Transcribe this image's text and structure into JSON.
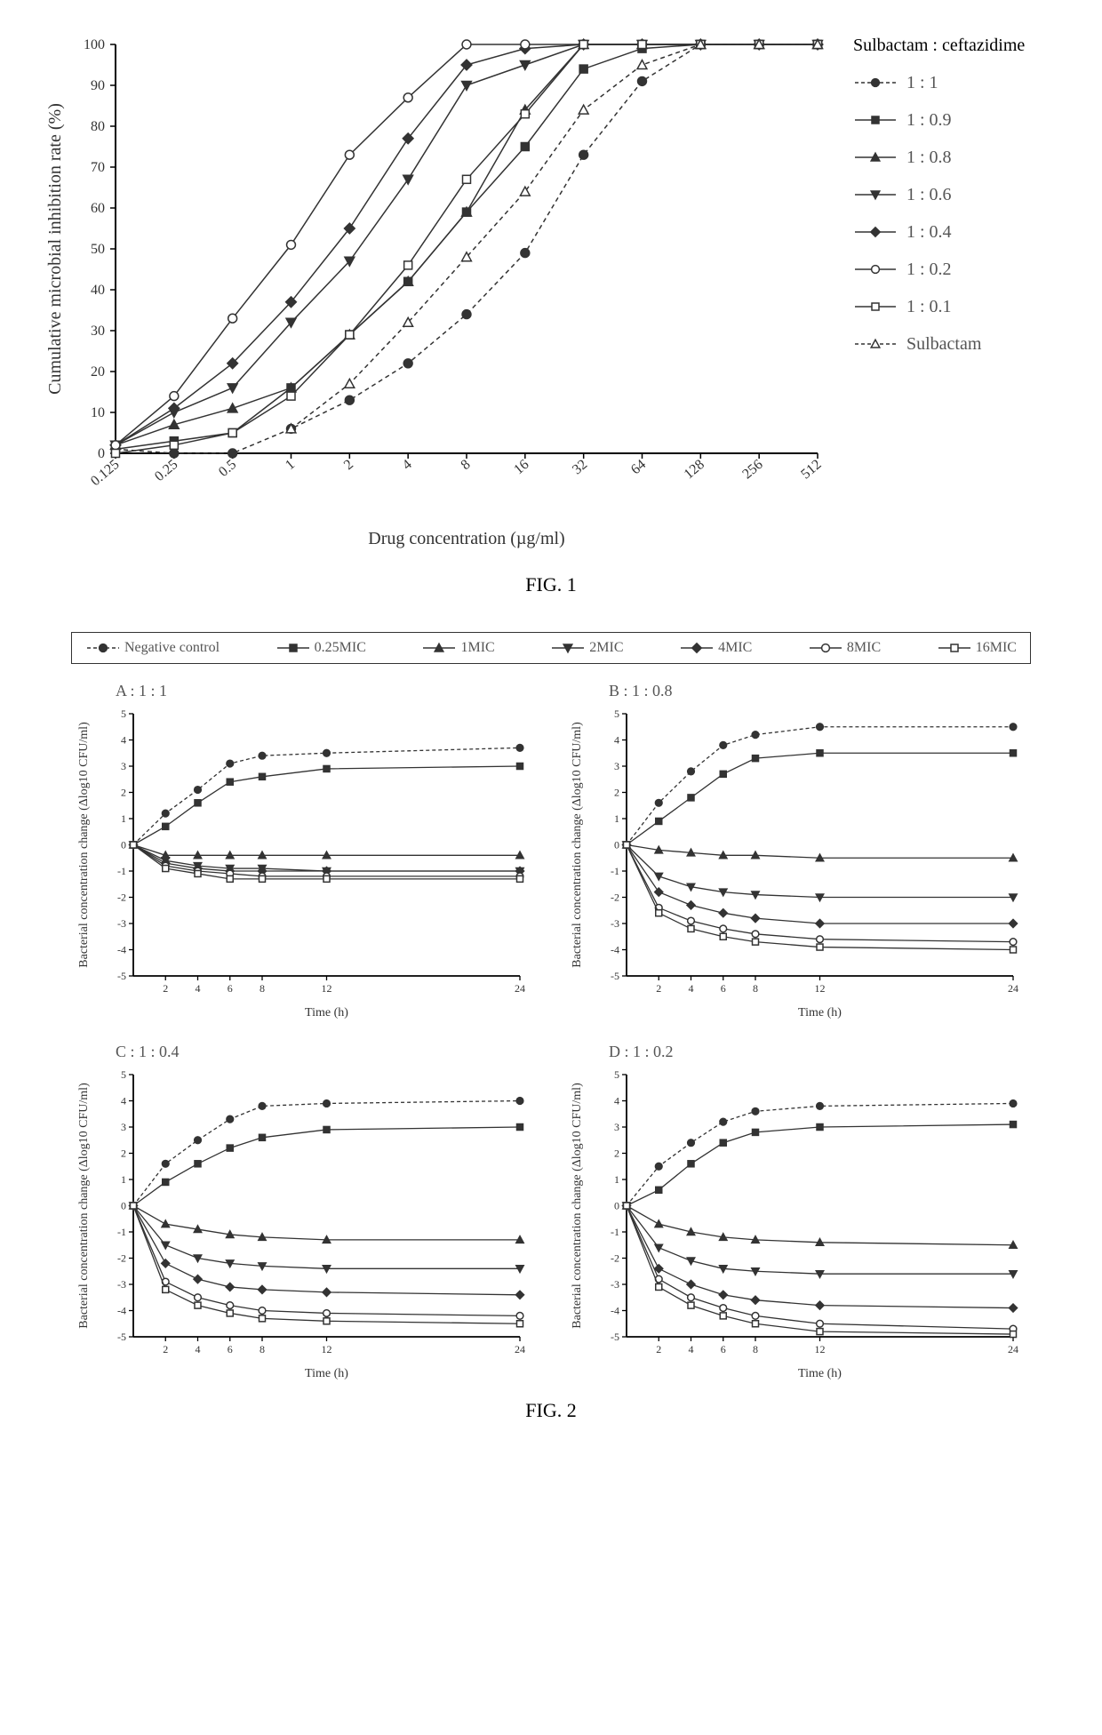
{
  "colors": {
    "ink": "#333333",
    "light": "#888888",
    "bg": "#ffffff",
    "axis": "#000000"
  },
  "markers": {
    "circle_filled": {
      "shape": "circle",
      "filled": true
    },
    "square_filled": {
      "shape": "square",
      "filled": true
    },
    "tri_up_filled": {
      "shape": "triangle-up",
      "filled": true
    },
    "tri_down_filled": {
      "shape": "triangle-down",
      "filled": true
    },
    "diamond_filled": {
      "shape": "diamond",
      "filled": true
    },
    "circle_open": {
      "shape": "circle",
      "filled": false
    },
    "square_open": {
      "shape": "square",
      "filled": false
    },
    "tri_up_open": {
      "shape": "triangle-up",
      "filled": false
    }
  },
  "fig1": {
    "caption": "FIG. 1",
    "xlabel": "Drug concentration (µg/ml)",
    "ylabel": "Cumulative microbial inhibition rate (%)",
    "x_categories": [
      "0.125",
      "0.25",
      "0.5",
      "1",
      "2",
      "4",
      "8",
      "16",
      "32",
      "64",
      "128",
      "256",
      "512"
    ],
    "y_ticks": [
      0,
      10,
      20,
      30,
      40,
      50,
      60,
      70,
      80,
      90,
      100
    ],
    "ylim": [
      0,
      100
    ],
    "legend_title": "Sulbactam : ceftazidime",
    "axis_fontsize": 20,
    "tick_fontsize": 16,
    "series": [
      {
        "label": "1 : 1",
        "marker": "circle_filled",
        "dashed": true,
        "y": [
          1,
          0,
          0,
          6,
          13,
          22,
          34,
          49,
          73,
          91,
          100,
          100,
          100
        ]
      },
      {
        "label": "1 : 0.9",
        "marker": "square_filled",
        "dashed": false,
        "y": [
          1,
          3,
          5,
          16,
          29,
          42,
          59,
          75,
          94,
          99,
          100,
          100,
          100
        ]
      },
      {
        "label": "1 : 0.8",
        "marker": "tri_up_filled",
        "dashed": false,
        "y": [
          2,
          7,
          11,
          16,
          29,
          42,
          59,
          84,
          100,
          100,
          100,
          100,
          100
        ]
      },
      {
        "label": "1 : 0.6",
        "marker": "tri_down_filled",
        "dashed": false,
        "y": [
          2,
          10,
          16,
          32,
          47,
          67,
          90,
          95,
          100,
          100,
          100,
          100,
          100
        ]
      },
      {
        "label": "1 : 0.4",
        "marker": "diamond_filled",
        "dashed": false,
        "y": [
          2,
          11,
          22,
          37,
          55,
          77,
          95,
          99,
          100,
          100,
          100,
          100,
          100
        ]
      },
      {
        "label": "1 : 0.2",
        "marker": "circle_open",
        "dashed": false,
        "y": [
          2,
          14,
          33,
          51,
          73,
          87,
          100,
          100,
          100,
          100,
          100,
          100,
          100
        ]
      },
      {
        "label": "1 : 0.1",
        "marker": "square_open",
        "dashed": false,
        "y": [
          0,
          2,
          5,
          14,
          29,
          46,
          67,
          83,
          100,
          100,
          100,
          100,
          100
        ]
      },
      {
        "label": "Sulbactam",
        "marker": "tri_up_open",
        "dashed": true,
        "y": [
          null,
          null,
          null,
          6,
          17,
          32,
          48,
          64,
          84,
          95,
          100,
          100,
          100
        ]
      }
    ]
  },
  "fig2": {
    "caption": "FIG. 2",
    "xlabel": "Time (h)",
    "ylabel": "Bacterial concentration change (Δlog10 CFU/ml)",
    "x_values": [
      0,
      2,
      4,
      6,
      8,
      12,
      24
    ],
    "x_ticks": [
      2,
      4,
      6,
      8,
      12,
      24
    ],
    "ylim": [
      -5,
      5
    ],
    "y_ticks": [
      -5,
      -4,
      -3,
      -2,
      -1,
      0,
      1,
      2,
      3,
      4,
      5
    ],
    "axis_fontsize": 14,
    "tick_fontsize": 12,
    "legend_items": [
      {
        "label": "Negative control",
        "marker": "circle_filled",
        "dashed": true
      },
      {
        "label": "0.25MIC",
        "marker": "square_filled",
        "dashed": false
      },
      {
        "label": "1MIC",
        "marker": "tri_up_filled",
        "dashed": false
      },
      {
        "label": "2MIC",
        "marker": "tri_down_filled",
        "dashed": false
      },
      {
        "label": "4MIC",
        "marker": "diamond_filled",
        "dashed": false
      },
      {
        "label": "8MIC",
        "marker": "circle_open",
        "dashed": false
      },
      {
        "label": "16MIC",
        "marker": "square_open",
        "dashed": false
      }
    ],
    "panels": [
      {
        "title": "A : 1 : 1",
        "series": [
          {
            "marker": "circle_filled",
            "dashed": true,
            "y": [
              0,
              1.2,
              2.1,
              3.1,
              3.4,
              3.5,
              3.7
            ]
          },
          {
            "marker": "square_filled",
            "dashed": false,
            "y": [
              0,
              0.7,
              1.6,
              2.4,
              2.6,
              2.9,
              3.0
            ]
          },
          {
            "marker": "tri_up_filled",
            "dashed": false,
            "y": [
              0,
              -0.4,
              -0.4,
              -0.4,
              -0.4,
              -0.4,
              -0.4
            ]
          },
          {
            "marker": "tri_down_filled",
            "dashed": false,
            "y": [
              0,
              -0.6,
              -0.8,
              -0.9,
              -0.9,
              -1.0,
              -1.0
            ]
          },
          {
            "marker": "diamond_filled",
            "dashed": false,
            "y": [
              0,
              -0.7,
              -0.9,
              -1.0,
              -1.0,
              -1.0,
              -1.0
            ]
          },
          {
            "marker": "circle_open",
            "dashed": false,
            "y": [
              0,
              -0.8,
              -1.0,
              -1.1,
              -1.2,
              -1.2,
              -1.2
            ]
          },
          {
            "marker": "square_open",
            "dashed": false,
            "y": [
              0,
              -0.9,
              -1.1,
              -1.3,
              -1.3,
              -1.3,
              -1.3
            ]
          }
        ]
      },
      {
        "title": "B : 1 : 0.8",
        "series": [
          {
            "marker": "circle_filled",
            "dashed": true,
            "y": [
              0,
              1.6,
              2.8,
              3.8,
              4.2,
              4.5,
              4.5
            ]
          },
          {
            "marker": "square_filled",
            "dashed": false,
            "y": [
              0,
              0.9,
              1.8,
              2.7,
              3.3,
              3.5,
              3.5
            ]
          },
          {
            "marker": "tri_up_filled",
            "dashed": false,
            "y": [
              0,
              -0.2,
              -0.3,
              -0.4,
              -0.4,
              -0.5,
              -0.5
            ]
          },
          {
            "marker": "tri_down_filled",
            "dashed": false,
            "y": [
              0,
              -1.2,
              -1.6,
              -1.8,
              -1.9,
              -2.0,
              -2.0
            ]
          },
          {
            "marker": "diamond_filled",
            "dashed": false,
            "y": [
              0,
              -1.8,
              -2.3,
              -2.6,
              -2.8,
              -3.0,
              -3.0
            ]
          },
          {
            "marker": "circle_open",
            "dashed": false,
            "y": [
              0,
              -2.4,
              -2.9,
              -3.2,
              -3.4,
              -3.6,
              -3.7
            ]
          },
          {
            "marker": "square_open",
            "dashed": false,
            "y": [
              0,
              -2.6,
              -3.2,
              -3.5,
              -3.7,
              -3.9,
              -4.0
            ]
          }
        ]
      },
      {
        "title": "C : 1 : 0.4",
        "series": [
          {
            "marker": "circle_filled",
            "dashed": true,
            "y": [
              0,
              1.6,
              2.5,
              3.3,
              3.8,
              3.9,
              4.0
            ]
          },
          {
            "marker": "square_filled",
            "dashed": false,
            "y": [
              0,
              0.9,
              1.6,
              2.2,
              2.6,
              2.9,
              3.0
            ]
          },
          {
            "marker": "tri_up_filled",
            "dashed": false,
            "y": [
              0,
              -0.7,
              -0.9,
              -1.1,
              -1.2,
              -1.3,
              -1.3
            ]
          },
          {
            "marker": "tri_down_filled",
            "dashed": false,
            "y": [
              0,
              -1.5,
              -2.0,
              -2.2,
              -2.3,
              -2.4,
              -2.4
            ]
          },
          {
            "marker": "diamond_filled",
            "dashed": false,
            "y": [
              0,
              -2.2,
              -2.8,
              -3.1,
              -3.2,
              -3.3,
              -3.4
            ]
          },
          {
            "marker": "circle_open",
            "dashed": false,
            "y": [
              0,
              -2.9,
              -3.5,
              -3.8,
              -4.0,
              -4.1,
              -4.2
            ]
          },
          {
            "marker": "square_open",
            "dashed": false,
            "y": [
              0,
              -3.2,
              -3.8,
              -4.1,
              -4.3,
              -4.4,
              -4.5
            ]
          }
        ]
      },
      {
        "title": "D : 1 : 0.2",
        "series": [
          {
            "marker": "circle_filled",
            "dashed": true,
            "y": [
              0,
              1.5,
              2.4,
              3.2,
              3.6,
              3.8,
              3.9
            ]
          },
          {
            "marker": "square_filled",
            "dashed": false,
            "y": [
              0,
              0.6,
              1.6,
              2.4,
              2.8,
              3.0,
              3.1
            ]
          },
          {
            "marker": "tri_up_filled",
            "dashed": false,
            "y": [
              0,
              -0.7,
              -1.0,
              -1.2,
              -1.3,
              -1.4,
              -1.5
            ]
          },
          {
            "marker": "tri_down_filled",
            "dashed": false,
            "y": [
              0,
              -1.6,
              -2.1,
              -2.4,
              -2.5,
              -2.6,
              -2.6
            ]
          },
          {
            "marker": "diamond_filled",
            "dashed": false,
            "y": [
              0,
              -2.4,
              -3.0,
              -3.4,
              -3.6,
              -3.8,
              -3.9
            ]
          },
          {
            "marker": "circle_open",
            "dashed": false,
            "y": [
              0,
              -2.8,
              -3.5,
              -3.9,
              -4.2,
              -4.5,
              -4.7
            ]
          },
          {
            "marker": "square_open",
            "dashed": false,
            "y": [
              0,
              -3.1,
              -3.8,
              -4.2,
              -4.5,
              -4.8,
              -4.9
            ]
          }
        ]
      }
    ]
  }
}
